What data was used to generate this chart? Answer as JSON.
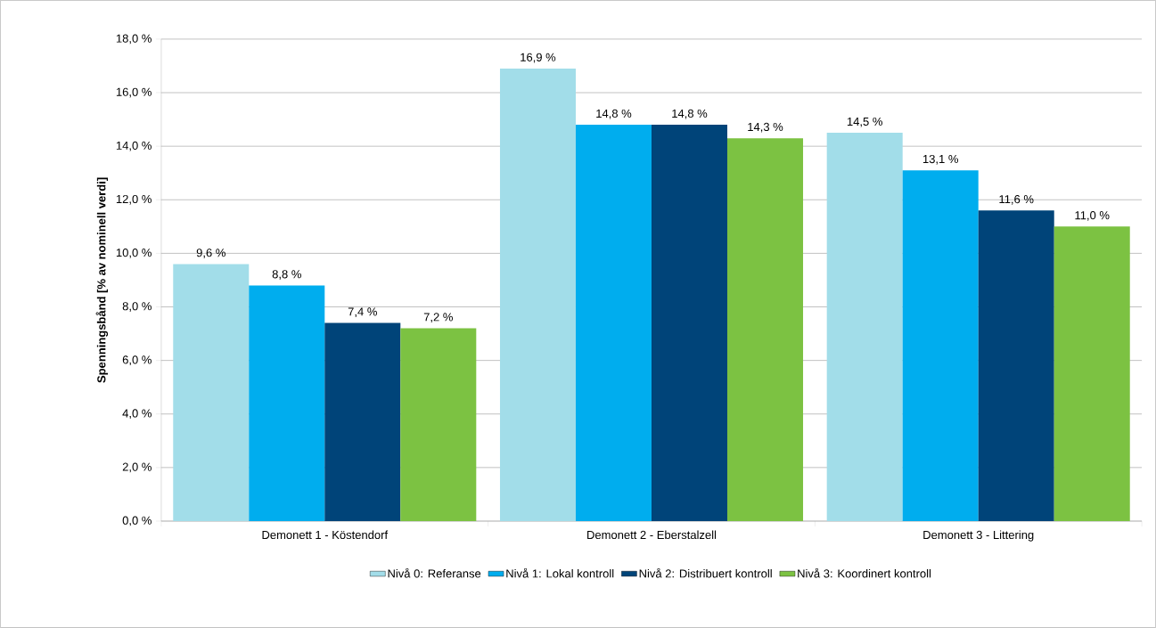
{
  "chart_data": {
    "type": "bar",
    "ylabel": "Spenningsbånd  [% av nominell verdi]",
    "categories": [
      "Demonett 1 - Köstendorf",
      "Demonett 2 - Eberstalzell",
      "Demonett 3 - Littering"
    ],
    "series": [
      {
        "name": "Nivå 0: Referanse",
        "color": "#a2dde9",
        "values": [
          9.6,
          16.9,
          14.5
        ],
        "value_labels": [
          "9,6 %",
          "16,9 %",
          "14,5 %"
        ]
      },
      {
        "name": "Nivå 1: Lokal kontroll",
        "color": "#00adee",
        "values": [
          8.8,
          14.8,
          13.1
        ],
        "value_labels": [
          "8,8 %",
          "14,8 %",
          "13,1 %"
        ]
      },
      {
        "name": "Nivå 2: Distribuert kontroll",
        "color": "#004479",
        "values": [
          7.4,
          14.8,
          11.6
        ],
        "value_labels": [
          "7,4 %",
          "14,8 %",
          "11,6 %"
        ]
      },
      {
        "name": "Nivå 3: Koordinert kontroll",
        "color": "#7cc242",
        "values": [
          7.2,
          14.3,
          11.0
        ],
        "value_labels": [
          "7,2 %",
          "14,3 %",
          "11,0 %"
        ]
      }
    ],
    "ylim": [
      0,
      18
    ],
    "yticks": [
      {
        "value": 0,
        "label": "0,0 %"
      },
      {
        "value": 2,
        "label": "2,0 %"
      },
      {
        "value": 4,
        "label": "4,0 %"
      },
      {
        "value": 6,
        "label": "6,0 %"
      },
      {
        "value": 8,
        "label": "8,0 %"
      },
      {
        "value": 10,
        "label": "10,0 %"
      },
      {
        "value": 12,
        "label": "12,0 %"
      },
      {
        "value": 14,
        "label": "14,0 %"
      },
      {
        "value": 16,
        "label": "16,0 %"
      },
      {
        "value": 18,
        "label": "18,0 %"
      }
    ],
    "grid": "y",
    "legend": "bottom"
  }
}
